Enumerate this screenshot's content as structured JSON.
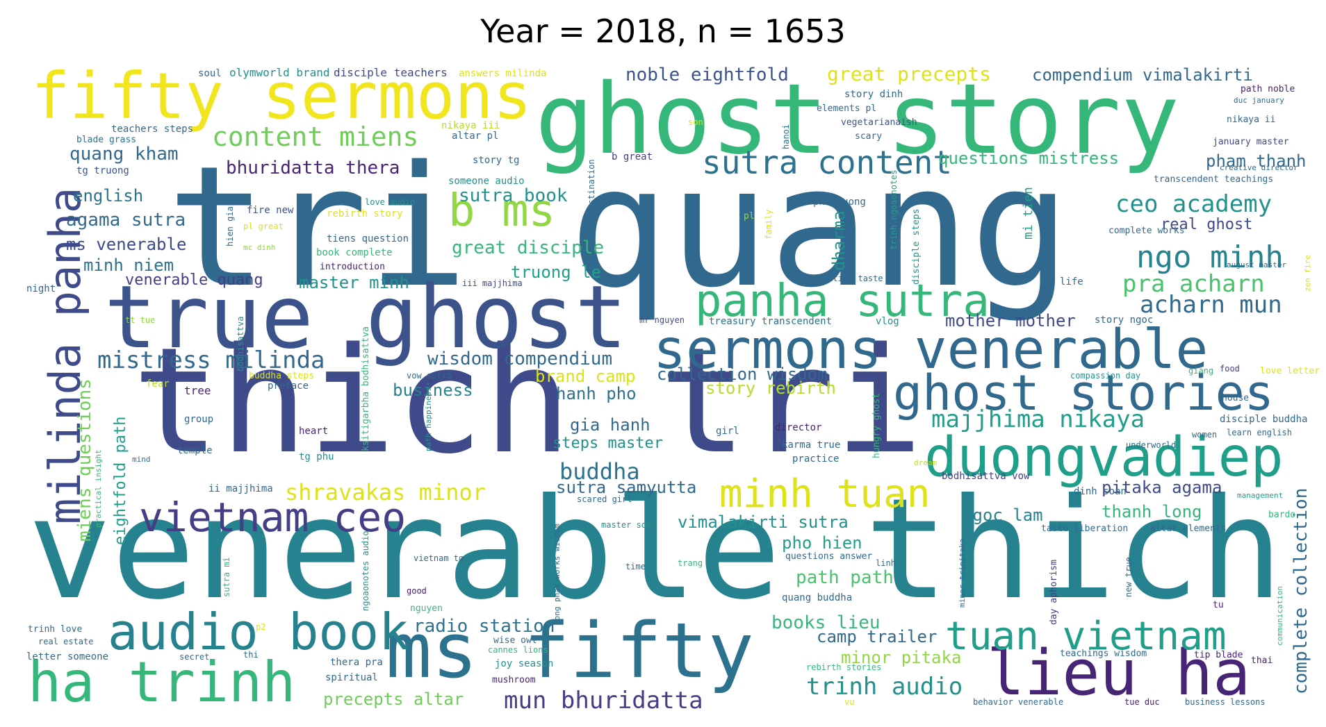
{
  "title": "Year = 2018, n = 1653",
  "palette": "viridis",
  "words": [
    {
      "text": "tri quang",
      "color": "#31688e"
    },
    {
      "text": "venerable thich",
      "color": "#26828e"
    },
    {
      "text": "thich tri",
      "color": "#3e4a89"
    },
    {
      "text": "ghost story",
      "color": "#35b779"
    },
    {
      "text": "true ghost",
      "color": "#3b528b"
    },
    {
      "text": "fifty sermons",
      "color": "#f1e51d"
    },
    {
      "text": "ms fifty",
      "color": "#2c728e"
    },
    {
      "text": "lieu ha",
      "color": "#482475"
    },
    {
      "text": "ha trinh",
      "color": "#35b779"
    },
    {
      "text": "audio book",
      "color": "#26828e"
    },
    {
      "text": "milinda panha",
      "color": "#3e4a89"
    },
    {
      "text": "panha sutra",
      "color": "#35b779"
    },
    {
      "text": "sermons venerable",
      "color": "#31688e"
    },
    {
      "text": "ghost stories",
      "color": "#31688e"
    },
    {
      "text": "duongvadiep",
      "color": "#1f9e89"
    },
    {
      "text": "vietnam ceo",
      "color": "#433e85"
    },
    {
      "text": "minh tuan",
      "color": "#dde318"
    },
    {
      "text": "tuan vietnam",
      "color": "#1f9e89"
    },
    {
      "text": "b ms",
      "color": "#90d743"
    },
    {
      "text": "sutra content",
      "color": "#2c728e"
    },
    {
      "text": "content miens",
      "color": "#6ece58"
    },
    {
      "text": "ngo minh",
      "color": "#26828e"
    },
    {
      "text": "ceo academy",
      "color": "#21918c"
    },
    {
      "text": "noble eightfold",
      "color": "#3b528b"
    },
    {
      "text": "great precepts",
      "color": "#dde318"
    },
    {
      "text": "compendium vimalakirti",
      "color": "#31688e"
    },
    {
      "text": "quang kham",
      "color": "#31688e"
    },
    {
      "text": "bhuridatta thera",
      "color": "#482475"
    },
    {
      "text": "sutra book",
      "color": "#21918c"
    },
    {
      "text": "questions mistress",
      "color": "#35b779"
    },
    {
      "text": "pham thanh",
      "color": "#31688e"
    },
    {
      "text": "english",
      "color": "#2c728e"
    },
    {
      "text": "agama sutra",
      "color": "#31688e"
    },
    {
      "text": "ms venerable",
      "color": "#3e4a89"
    },
    {
      "text": "minh niem",
      "color": "#2c728e"
    },
    {
      "text": "great disciple",
      "color": "#35b779"
    },
    {
      "text": "real ghost",
      "color": "#3e4a89"
    },
    {
      "text": "truong le",
      "color": "#1fa187"
    },
    {
      "text": "pra acharn",
      "color": "#4ac16d"
    },
    {
      "text": "venerable quang",
      "color": "#433e85"
    },
    {
      "text": "master minh",
      "color": "#21918c"
    },
    {
      "text": "acharn mun",
      "color": "#31688e"
    },
    {
      "text": "dharma",
      "color": "#21918c"
    },
    {
      "text": "mother mother",
      "color": "#3e4a89"
    },
    {
      "text": "mistress milinda",
      "color": "#31688e"
    },
    {
      "text": "wisdom compendium",
      "color": "#31688e"
    },
    {
      "text": "miens questions",
      "color": "#6ece58"
    },
    {
      "text": "eightfold path",
      "color": "#1f9e89"
    },
    {
      "text": "brand camp",
      "color": "#dde318"
    },
    {
      "text": "collection wisdom",
      "color": "#31688e"
    },
    {
      "text": "story rebirth",
      "color": "#b5de2b"
    },
    {
      "text": "business",
      "color": "#26828e"
    },
    {
      "text": "hanh pho",
      "color": "#2c728e"
    },
    {
      "text": "majjhima nikaya",
      "color": "#1f9e89"
    },
    {
      "text": "gia hanh",
      "color": "#31688e"
    },
    {
      "text": "steps master",
      "color": "#21918c"
    },
    {
      "text": "buddha",
      "color": "#2c728e"
    },
    {
      "text": "shravakas minor",
      "color": "#dde318"
    },
    {
      "text": "sutra samyutta",
      "color": "#31688e"
    },
    {
      "text": "pitaka agama",
      "color": "#3e4a89"
    },
    {
      "text": "ngoc lam",
      "color": "#26828e"
    },
    {
      "text": "thanh long",
      "color": "#35b779"
    },
    {
      "text": "vimalakirti sutra",
      "color": "#21918c"
    },
    {
      "text": "pho hien",
      "color": "#1f9e89"
    },
    {
      "text": "path path",
      "color": "#4ac16d"
    },
    {
      "text": "books lieu",
      "color": "#35b779"
    },
    {
      "text": "radio station",
      "color": "#2c728e"
    },
    {
      "text": "camp trailer",
      "color": "#31688e"
    },
    {
      "text": "minor pitaka",
      "color": "#90d743"
    },
    {
      "text": "trinh audio",
      "color": "#21918c"
    },
    {
      "text": "mun bhuridatta",
      "color": "#433e85"
    },
    {
      "text": "precepts altar",
      "color": "#6ece58"
    },
    {
      "text": "complete collection",
      "color": "#31688e"
    },
    {
      "text": "disciple teachers",
      "color": "#3e4a89"
    },
    {
      "text": "soul",
      "color": "#31688e"
    },
    {
      "text": "olymworld brand",
      "color": "#21918c"
    },
    {
      "text": "answers milinda",
      "color": "#dde318"
    },
    {
      "text": "teachers steps",
      "color": "#31688e"
    },
    {
      "text": "blade grass",
      "color": "#2c728e"
    },
    {
      "text": "tg truong",
      "color": "#3b528b"
    },
    {
      "text": "nikaya iii",
      "color": "#b5de2b"
    },
    {
      "text": "altar pl",
      "color": "#31688e"
    },
    {
      "text": "son",
      "color": "#dde318"
    },
    {
      "text": "story tg",
      "color": "#31688e"
    },
    {
      "text": "someone audio",
      "color": "#21918c"
    },
    {
      "text": "b great",
      "color": "#433e85"
    },
    {
      "text": "road destination",
      "color": "#31688e"
    },
    {
      "text": "story dinh",
      "color": "#31688e"
    },
    {
      "text": "elements pl",
      "color": "#31688e"
    },
    {
      "text": "vegetarianaish",
      "color": "#3b528b"
    },
    {
      "text": "scary",
      "color": "#31688e"
    },
    {
      "text": "hanoi",
      "color": "#2c728e"
    },
    {
      "text": "creative director",
      "color": "#31688e"
    },
    {
      "text": "path noble",
      "color": "#482475"
    },
    {
      "text": "duc january",
      "color": "#31688e"
    },
    {
      "text": "nikaya ii",
      "color": "#31688e"
    },
    {
      "text": "january master",
      "color": "#3e4a89"
    },
    {
      "text": "transcendent teachings",
      "color": "#31688e"
    },
    {
      "text": "fire new",
      "color": "#3b528b"
    },
    {
      "text": "rebirth story",
      "color": "#dde318"
    },
    {
      "text": "hien gia",
      "color": "#31688e"
    },
    {
      "text": "pl great",
      "color": "#dde318"
    },
    {
      "text": "mc dinh",
      "color": "#90d743"
    },
    {
      "text": "tiens question",
      "color": "#31688e"
    },
    {
      "text": "book complete",
      "color": "#35b779"
    },
    {
      "text": "introduction",
      "color": "#482475"
    },
    {
      "text": "love audio",
      "color": "#21918c"
    },
    {
      "text": "phu duong",
      "color": "#31688e"
    },
    {
      "text": "pl",
      "color": "#90d743"
    },
    {
      "text": "family",
      "color": "#dde318"
    },
    {
      "text": "trinh ngoaonotes",
      "color": "#1fa187"
    },
    {
      "text": "disciple steps",
      "color": "#21918c"
    },
    {
      "text": "mi tien",
      "color": "#1fa187"
    },
    {
      "text": "complete works",
      "color": "#31688e"
    },
    {
      "text": "august master",
      "color": "#31688e"
    },
    {
      "text": "zen fire",
      "color": "#dde318"
    },
    {
      "text": "life",
      "color": "#31688e"
    },
    {
      "text": "liberation taste",
      "color": "#31688e"
    },
    {
      "text": "night",
      "color": "#31688e"
    },
    {
      "text": "iii majjhima",
      "color": "#3e4a89"
    },
    {
      "text": "tt tue",
      "color": "#90d743"
    },
    {
      "text": "mr nguyen",
      "color": "#3e4a89"
    },
    {
      "text": "treasury transcendent",
      "color": "#2c728e"
    },
    {
      "text": "vlog",
      "color": "#21918c"
    },
    {
      "text": "story ngoc",
      "color": "#31688e"
    },
    {
      "text": "bodhisattva",
      "color": "#21918c"
    },
    {
      "text": "ksitigarbha bodhisattva",
      "color": "#35b779"
    },
    {
      "text": "buddha steps",
      "color": "#dde318"
    },
    {
      "text": "vow sutra",
      "color": "#31688e"
    },
    {
      "text": "compassion day",
      "color": "#21918c"
    },
    {
      "text": "food",
      "color": "#433e85"
    },
    {
      "text": "giang",
      "color": "#35b779"
    },
    {
      "text": "love letter",
      "color": "#dde318"
    },
    {
      "text": "fear",
      "color": "#b5de2b"
    },
    {
      "text": "tree",
      "color": "#482475"
    },
    {
      "text": "preface",
      "color": "#31688e"
    },
    {
      "text": "hungry ghost",
      "color": "#35b779"
    },
    {
      "text": "house",
      "color": "#31688e"
    },
    {
      "text": "group",
      "color": "#31688e"
    },
    {
      "text": "heart",
      "color": "#482475"
    },
    {
      "text": "path happiness",
      "color": "#21918c"
    },
    {
      "text": "girl",
      "color": "#31688e"
    },
    {
      "text": "director",
      "color": "#482475"
    },
    {
      "text": "karma true",
      "color": "#31688e"
    },
    {
      "text": "women",
      "color": "#31688e"
    },
    {
      "text": "disciple buddha",
      "color": "#31688e"
    },
    {
      "text": "learn english",
      "color": "#31688e"
    },
    {
      "text": "temple",
      "color": "#31688e"
    },
    {
      "text": "tg phu",
      "color": "#21918c"
    },
    {
      "text": "practice",
      "color": "#31688e"
    },
    {
      "text": "underworld",
      "color": "#31688e"
    },
    {
      "text": "practical insight",
      "color": "#35b779"
    },
    {
      "text": "mind",
      "color": "#31688e"
    },
    {
      "text": "dream",
      "color": "#b5de2b"
    },
    {
      "text": "bodhisattva vow",
      "color": "#433e85"
    },
    {
      "text": "ii majjhima",
      "color": "#31688e"
    },
    {
      "text": "dinh soan",
      "color": "#31688e"
    },
    {
      "text": "management",
      "color": "#1fa187"
    },
    {
      "text": "scared girl",
      "color": "#31688e"
    },
    {
      "text": "long pham works wisdom",
      "color": "#31688e"
    },
    {
      "text": "master son",
      "color": "#21918c"
    },
    {
      "text": "minor tripitaka",
      "color": "#31688e"
    },
    {
      "text": "taste liberation",
      "color": "#31688e"
    },
    {
      "text": "altar elements",
      "color": "#31688e"
    },
    {
      "text": "bardo",
      "color": "#35b779"
    },
    {
      "text": "sutra mi",
      "color": "#35b779"
    },
    {
      "text": "ngoaonotes audio",
      "color": "#21918c"
    },
    {
      "text": "vietnam tg",
      "color": "#31688e"
    },
    {
      "text": "time",
      "color": "#31688e"
    },
    {
      "text": "trang",
      "color": "#35b779"
    },
    {
      "text": "questions answer",
      "color": "#31688e"
    },
    {
      "text": "linh",
      "color": "#31688e"
    },
    {
      "text": "day aphorism",
      "color": "#433e85"
    },
    {
      "text": "new true",
      "color": "#31688e"
    },
    {
      "text": "good",
      "color": "#482475"
    },
    {
      "text": "nguyen",
      "color": "#35b779"
    },
    {
      "text": "quang buddha",
      "color": "#31688e"
    },
    {
      "text": "tu",
      "color": "#482475"
    },
    {
      "text": "trinh love",
      "color": "#31688e"
    },
    {
      "text": "real estate",
      "color": "#31688e"
    },
    {
      "text": "p2",
      "color": "#dde318"
    },
    {
      "text": "communication",
      "color": "#35b779"
    },
    {
      "text": "wise owl",
      "color": "#31688e"
    },
    {
      "text": "cannes lions",
      "color": "#35b779"
    },
    {
      "text": "letter someone",
      "color": "#31688e"
    },
    {
      "text": "secret",
      "color": "#31688e"
    },
    {
      "text": "thi",
      "color": "#31688e"
    },
    {
      "text": "joy season",
      "color": "#21918c"
    },
    {
      "text": "teachings wisdom",
      "color": "#31688e"
    },
    {
      "text": "tip blade",
      "color": "#482475"
    },
    {
      "text": "thai",
      "color": "#482475"
    },
    {
      "text": "spiritual",
      "color": "#31688e"
    },
    {
      "text": "mushroom",
      "color": "#482475"
    },
    {
      "text": "thera pra",
      "color": "#31688e"
    },
    {
      "text": "rebirth stories",
      "color": "#35b779"
    },
    {
      "text": "vu",
      "color": "#dde318"
    },
    {
      "text": "behavior venerable",
      "color": "#31688e"
    },
    {
      "text": "tue duc",
      "color": "#482475"
    },
    {
      "text": "business lessons",
      "color": "#31688e"
    }
  ]
}
